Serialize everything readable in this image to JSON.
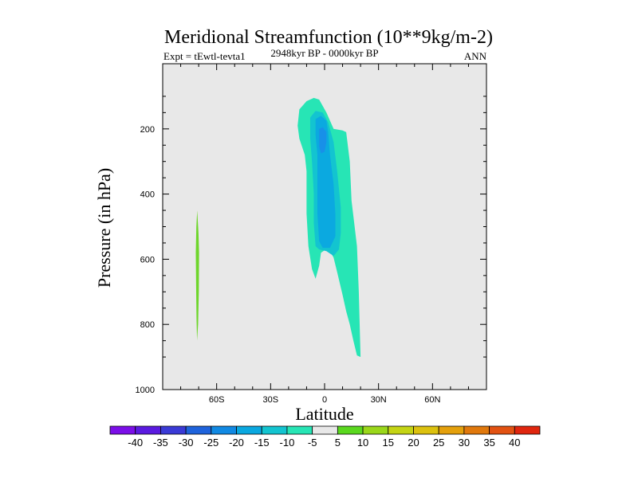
{
  "chart_data": {
    "type": "contour",
    "title": "Meridional Streamfunction (10**9kg/m-2)",
    "subtitle": "2948kyr BP - 0000kyr BP",
    "left_label": "Expt = tEwtl-tevta1",
    "right_label": "ANN",
    "xlabel": "Latitude",
    "ylabel": "Pressure (in hPa)",
    "xlim": [
      -90,
      90
    ],
    "ylim": [
      1000,
      0
    ],
    "x_ticks": [
      {
        "value": -60,
        "label": "60S"
      },
      {
        "value": -30,
        "label": "30S"
      },
      {
        "value": 0,
        "label": "0"
      },
      {
        "value": 30,
        "label": "30N"
      },
      {
        "value": 60,
        "label": "60N"
      }
    ],
    "y_ticks": [
      {
        "value": 200,
        "label": "200"
      },
      {
        "value": 400,
        "label": "400"
      },
      {
        "value": 600,
        "label": "600"
      },
      {
        "value": 800,
        "label": "800"
      },
      {
        "value": 1000,
        "label": "1000"
      }
    ],
    "background_color": "#e8e8e8",
    "contours": [
      {
        "level": "-10 to -5",
        "color": "#27e5b5",
        "points": [
          [
            -15,
            190
          ],
          [
            -14,
            140
          ],
          [
            -10,
            115
          ],
          [
            -6,
            105
          ],
          [
            -3,
            110
          ],
          [
            1,
            150
          ],
          [
            5,
            200
          ],
          [
            10,
            205
          ],
          [
            12,
            210
          ],
          [
            14,
            300
          ],
          [
            15,
            420
          ],
          [
            18,
            560
          ],
          [
            19,
            700
          ],
          [
            20,
            900
          ],
          [
            18,
            895
          ],
          [
            16,
            850
          ],
          [
            14,
            800
          ],
          [
            12,
            760
          ],
          [
            10,
            710
          ],
          [
            7,
            640
          ],
          [
            5,
            595
          ],
          [
            2,
            565
          ],
          [
            -2,
            580
          ],
          [
            -3,
            620
          ],
          [
            -5,
            660
          ],
          [
            -7,
            630
          ],
          [
            -9,
            560
          ],
          [
            -10,
            460
          ],
          [
            -10,
            330
          ],
          [
            -11,
            280
          ],
          [
            -14,
            230
          ]
        ]
      },
      {
        "level": "-15 to -10",
        "color": "#13c4d0",
        "points": [
          [
            -8,
            165
          ],
          [
            -5,
            145
          ],
          [
            -1,
            150
          ],
          [
            2,
            180
          ],
          [
            5,
            240
          ],
          [
            7,
            330
          ],
          [
            9,
            440
          ],
          [
            9,
            520
          ],
          [
            8,
            570
          ],
          [
            5,
            590
          ],
          [
            1,
            575
          ],
          [
            -3,
            570
          ],
          [
            -5,
            560
          ],
          [
            -6,
            490
          ],
          [
            -6,
            400
          ],
          [
            -7,
            300
          ],
          [
            -8,
            230
          ]
        ]
      },
      {
        "level": "-20 to -15",
        "color": "#0ba9e0",
        "points": [
          [
            -5,
            170
          ],
          [
            -2,
            160
          ],
          [
            1,
            175
          ],
          [
            2,
            210
          ],
          [
            3,
            280
          ],
          [
            5,
            370
          ],
          [
            6,
            460
          ],
          [
            6,
            530
          ],
          [
            3,
            565
          ],
          [
            -1,
            565
          ],
          [
            -3,
            545
          ],
          [
            -4,
            460
          ],
          [
            -4,
            370
          ],
          [
            -4,
            280
          ],
          [
            -5,
            220
          ]
        ]
      },
      {
        "level": "-25 to -20",
        "color": "#1890e8",
        "points": [
          [
            -3,
            200
          ],
          [
            -1,
            195
          ],
          [
            1,
            210
          ],
          [
            1,
            240
          ],
          [
            0,
            270
          ],
          [
            -2,
            275
          ],
          [
            -3,
            255
          ]
        ]
      },
      {
        "level": "5 to 10",
        "color": "#6ed62b",
        "points": [
          [
            -70.8,
            450
          ],
          [
            -70.1,
            520
          ],
          [
            -69.8,
            580
          ],
          [
            -69.9,
            700
          ],
          [
            -70.3,
            800
          ],
          [
            -70.9,
            850
          ],
          [
            -71.2,
            780
          ],
          [
            -71.4,
            700
          ],
          [
            -71.6,
            580
          ],
          [
            -71.3,
            500
          ]
        ]
      }
    ],
    "colorbar": {
      "tick_labels": [
        "-40",
        "-35",
        "-30",
        "-25",
        "-20",
        "-15",
        "-10",
        "-5",
        "5",
        "10",
        "15",
        "20",
        "25",
        "30",
        "35",
        "40"
      ],
      "colors": [
        "#7b0ee8",
        "#5a1ae0",
        "#3a3ad6",
        "#1e63dc",
        "#1189e3",
        "#0aa8e0",
        "#13c4d0",
        "#27e5b5",
        "#e8e8e8",
        "#5ad81e",
        "#9ad71a",
        "#c4d414",
        "#dcc10e",
        "#e4a00c",
        "#e0780c",
        "#e25212",
        "#e0260e"
      ]
    }
  }
}
